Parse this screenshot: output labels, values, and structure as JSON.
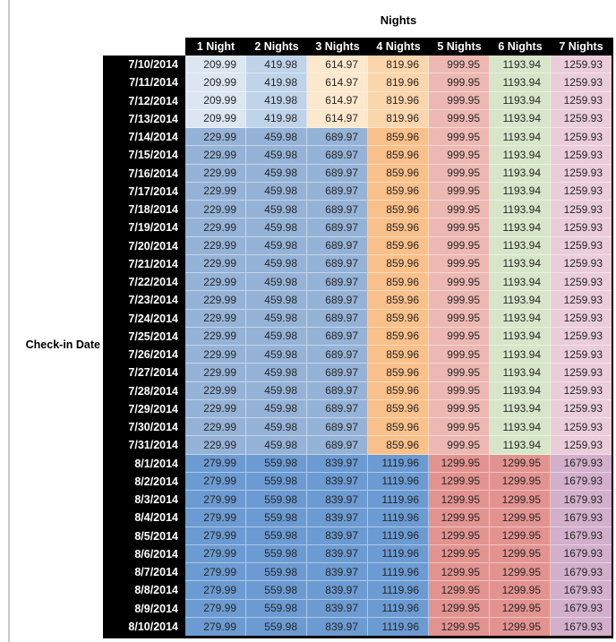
{
  "page": {
    "title": "Nights",
    "row_axis_label": "Check-in Date"
  },
  "table": {
    "columns": [
      "1 Night",
      "2 Nights",
      "3 Nights",
      "4 Nights",
      "5 Nights",
      "6 Nights",
      "7 Nights"
    ],
    "header_bg": "#000000",
    "header_text_color": "#ffffff",
    "value_text_color": "#262626"
  },
  "palette": {
    "paleBlue": "#dce6f1",
    "lightBlue": "#bfd3ea",
    "paleOrange": "#fce8cd",
    "lightOrange": "#fbd5ab",
    "mediumBlue": "#95b3d7",
    "mediumOrange": "#f9c089",
    "lightRed": "#edb8b2",
    "lightGreen": "#d7e6c9",
    "lightPink": "#eacdd8",
    "strongBlue": "#6b9bd2",
    "mediumRed": "#e29390",
    "mauve": "#d2afca"
  },
  "color_scheme": {
    "A": [
      "paleBlue",
      "lightBlue",
      "paleOrange",
      "lightOrange",
      "lightRed",
      "lightGreen",
      "lightPink"
    ],
    "B": [
      "mediumBlue",
      "mediumBlue",
      "mediumBlue",
      "mediumOrange",
      "lightRed",
      "lightGreen",
      "lightPink"
    ],
    "C": [
      "strongBlue",
      "strongBlue",
      "strongBlue",
      "strongBlue",
      "mediumRed",
      "mediumRed",
      "mauve"
    ]
  },
  "chart_data": {
    "type": "heatmap",
    "title": "Nights",
    "xlabel": "Nights",
    "ylabel": "Check-in Date",
    "columns": [
      "1 Night",
      "2 Nights",
      "3 Nights",
      "4 Nights",
      "5 Nights",
      "6 Nights",
      "7 Nights"
    ],
    "rows": [
      {
        "date": "7/10/2014",
        "group": "A",
        "values": [
          209.99,
          419.98,
          614.97,
          819.96,
          999.95,
          1193.94,
          1259.93
        ]
      },
      {
        "date": "7/11/2014",
        "group": "A",
        "values": [
          209.99,
          419.98,
          614.97,
          819.96,
          999.95,
          1193.94,
          1259.93
        ]
      },
      {
        "date": "7/12/2014",
        "group": "A",
        "values": [
          209.99,
          419.98,
          614.97,
          819.96,
          999.95,
          1193.94,
          1259.93
        ]
      },
      {
        "date": "7/13/2014",
        "group": "A",
        "values": [
          209.99,
          419.98,
          614.97,
          819.96,
          999.95,
          1193.94,
          1259.93
        ]
      },
      {
        "date": "7/14/2014",
        "group": "B",
        "values": [
          229.99,
          459.98,
          689.97,
          859.96,
          999.95,
          1193.94,
          1259.93
        ]
      },
      {
        "date": "7/15/2014",
        "group": "B",
        "values": [
          229.99,
          459.98,
          689.97,
          859.96,
          999.95,
          1193.94,
          1259.93
        ]
      },
      {
        "date": "7/16/2014",
        "group": "B",
        "values": [
          229.99,
          459.98,
          689.97,
          859.96,
          999.95,
          1193.94,
          1259.93
        ]
      },
      {
        "date": "7/17/2014",
        "group": "B",
        "values": [
          229.99,
          459.98,
          689.97,
          859.96,
          999.95,
          1193.94,
          1259.93
        ]
      },
      {
        "date": "7/18/2014",
        "group": "B",
        "values": [
          229.99,
          459.98,
          689.97,
          859.96,
          999.95,
          1193.94,
          1259.93
        ]
      },
      {
        "date": "7/19/2014",
        "group": "B",
        "values": [
          229.99,
          459.98,
          689.97,
          859.96,
          999.95,
          1193.94,
          1259.93
        ]
      },
      {
        "date": "7/20/2014",
        "group": "B",
        "values": [
          229.99,
          459.98,
          689.97,
          859.96,
          999.95,
          1193.94,
          1259.93
        ]
      },
      {
        "date": "7/21/2014",
        "group": "B",
        "values": [
          229.99,
          459.98,
          689.97,
          859.96,
          999.95,
          1193.94,
          1259.93
        ]
      },
      {
        "date": "7/22/2014",
        "group": "B",
        "values": [
          229.99,
          459.98,
          689.97,
          859.96,
          999.95,
          1193.94,
          1259.93
        ]
      },
      {
        "date": "7/23/2014",
        "group": "B",
        "values": [
          229.99,
          459.98,
          689.97,
          859.96,
          999.95,
          1193.94,
          1259.93
        ]
      },
      {
        "date": "7/24/2014",
        "group": "B",
        "values": [
          229.99,
          459.98,
          689.97,
          859.96,
          999.95,
          1193.94,
          1259.93
        ]
      },
      {
        "date": "7/25/2014",
        "group": "B",
        "values": [
          229.99,
          459.98,
          689.97,
          859.96,
          999.95,
          1193.94,
          1259.93
        ]
      },
      {
        "date": "7/26/2014",
        "group": "B",
        "values": [
          229.99,
          459.98,
          689.97,
          859.96,
          999.95,
          1193.94,
          1259.93
        ]
      },
      {
        "date": "7/27/2014",
        "group": "B",
        "values": [
          229.99,
          459.98,
          689.97,
          859.96,
          999.95,
          1193.94,
          1259.93
        ]
      },
      {
        "date": "7/28/2014",
        "group": "B",
        "values": [
          229.99,
          459.98,
          689.97,
          859.96,
          999.95,
          1193.94,
          1259.93
        ]
      },
      {
        "date": "7/29/2014",
        "group": "B",
        "values": [
          229.99,
          459.98,
          689.97,
          859.96,
          999.95,
          1193.94,
          1259.93
        ]
      },
      {
        "date": "7/30/2014",
        "group": "B",
        "values": [
          229.99,
          459.98,
          689.97,
          859.96,
          999.95,
          1193.94,
          1259.93
        ]
      },
      {
        "date": "7/31/2014",
        "group": "B",
        "values": [
          229.99,
          459.98,
          689.97,
          859.96,
          999.95,
          1193.94,
          1259.93
        ]
      },
      {
        "date": "8/1/2014",
        "group": "C",
        "values": [
          279.99,
          559.98,
          839.97,
          1119.96,
          1299.95,
          1299.95,
          1679.93
        ]
      },
      {
        "date": "8/2/2014",
        "group": "C",
        "values": [
          279.99,
          559.98,
          839.97,
          1119.96,
          1299.95,
          1299.95,
          1679.93
        ]
      },
      {
        "date": "8/3/2014",
        "group": "C",
        "values": [
          279.99,
          559.98,
          839.97,
          1119.96,
          1299.95,
          1299.95,
          1679.93
        ]
      },
      {
        "date": "8/4/2014",
        "group": "C",
        "values": [
          279.99,
          559.98,
          839.97,
          1119.96,
          1299.95,
          1299.95,
          1679.93
        ]
      },
      {
        "date": "8/5/2014",
        "group": "C",
        "values": [
          279.99,
          559.98,
          839.97,
          1119.96,
          1299.95,
          1299.95,
          1679.93
        ]
      },
      {
        "date": "8/6/2014",
        "group": "C",
        "values": [
          279.99,
          559.98,
          839.97,
          1119.96,
          1299.95,
          1299.95,
          1679.93
        ]
      },
      {
        "date": "8/7/2014",
        "group": "C",
        "values": [
          279.99,
          559.98,
          839.97,
          1119.96,
          1299.95,
          1299.95,
          1679.93
        ]
      },
      {
        "date": "8/8/2014",
        "group": "C",
        "values": [
          279.99,
          559.98,
          839.97,
          1119.96,
          1299.95,
          1299.95,
          1679.93
        ]
      },
      {
        "date": "8/9/2014",
        "group": "C",
        "values": [
          279.99,
          559.98,
          839.97,
          1119.96,
          1299.95,
          1299.95,
          1679.93
        ]
      },
      {
        "date": "8/10/2014",
        "group": "C",
        "values": [
          279.99,
          559.98,
          839.97,
          1119.96,
          1299.95,
          1299.95,
          1679.93
        ]
      }
    ]
  }
}
